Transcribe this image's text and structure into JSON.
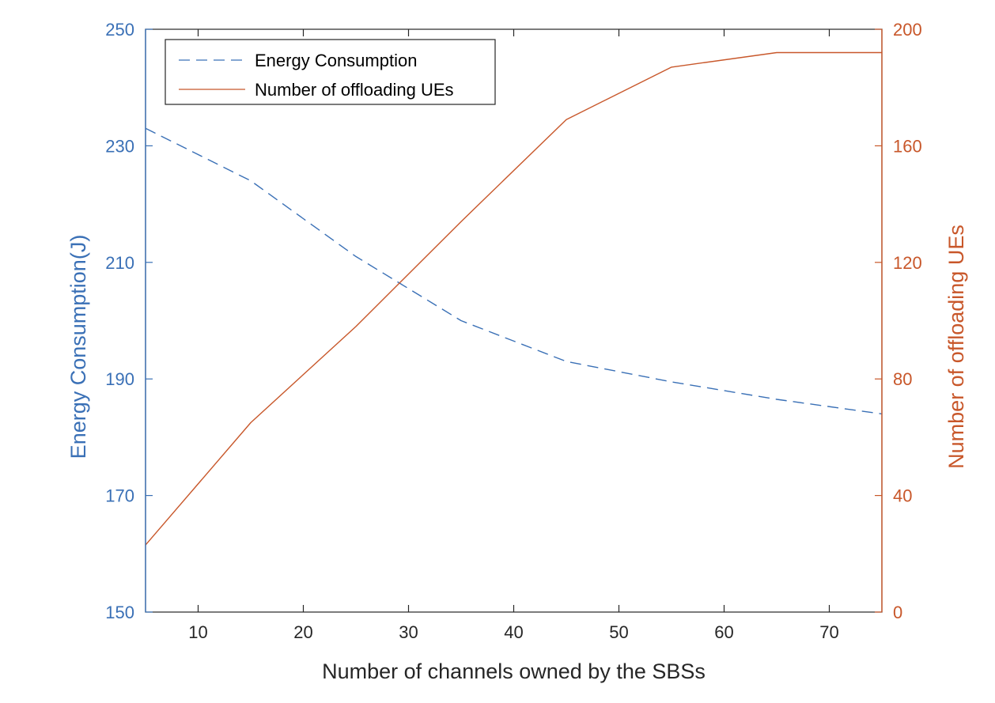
{
  "chart_data": {
    "type": "line",
    "xlabel": "Number of channels owned by the SBSs",
    "ylabel_left": "Energy Consumption(J)",
    "ylabel_right": "Number of offloading UEs",
    "xlim": [
      5,
      75
    ],
    "ylim_left": [
      150,
      250
    ],
    "ylim_right": [
      0,
      200
    ],
    "xticks": [
      10,
      20,
      30,
      40,
      50,
      60,
      70
    ],
    "yticks_left": [
      150,
      170,
      190,
      210,
      230,
      250
    ],
    "yticks_right": [
      0,
      40,
      80,
      120,
      160,
      200
    ],
    "grid": false,
    "legend_position": "top-left",
    "colors": {
      "left_axis": "#3a70b6",
      "right_axis": "#c8572a",
      "energy": "#3a70b6",
      "offload": "#c8572a",
      "frame": "#262626"
    },
    "series": [
      {
        "name": "Energy Consumption",
        "axis": "left",
        "style": "dashed",
        "x": [
          5,
          15,
          25,
          35,
          45,
          55,
          65,
          75
        ],
        "values": [
          233,
          224,
          211,
          200,
          193,
          189.5,
          186.5,
          184
        ]
      },
      {
        "name": "Number of offloading UEs",
        "axis": "right",
        "style": "solid",
        "x": [
          5,
          15,
          25,
          35,
          45,
          55,
          65,
          75
        ],
        "values": [
          23,
          65,
          98,
          134,
          169,
          187,
          192,
          192
        ]
      }
    ]
  }
}
